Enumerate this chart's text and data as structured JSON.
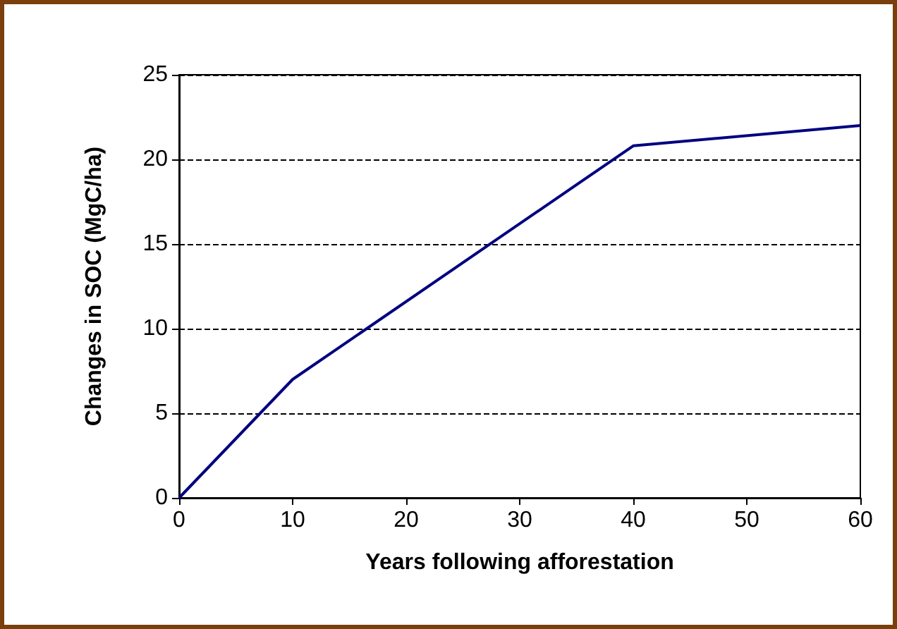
{
  "chart_data": {
    "type": "line",
    "xlabel": "Years following afforestation",
    "ylabel": "Changes in SOC (MgC/ha)",
    "x": [
      0,
      10,
      40,
      60
    ],
    "series": [
      {
        "color": "#000080",
        "values": [
          0,
          7,
          20.8,
          22
        ]
      }
    ],
    "xlim": [
      0,
      60
    ],
    "xticks": [
      0,
      10,
      20,
      30,
      40,
      50,
      60
    ],
    "ylim": [
      0,
      25
    ],
    "yticks": [
      0,
      5,
      10,
      15,
      20,
      25
    ],
    "grid": "y",
    "marker": "none",
    "line_style": "solid"
  }
}
